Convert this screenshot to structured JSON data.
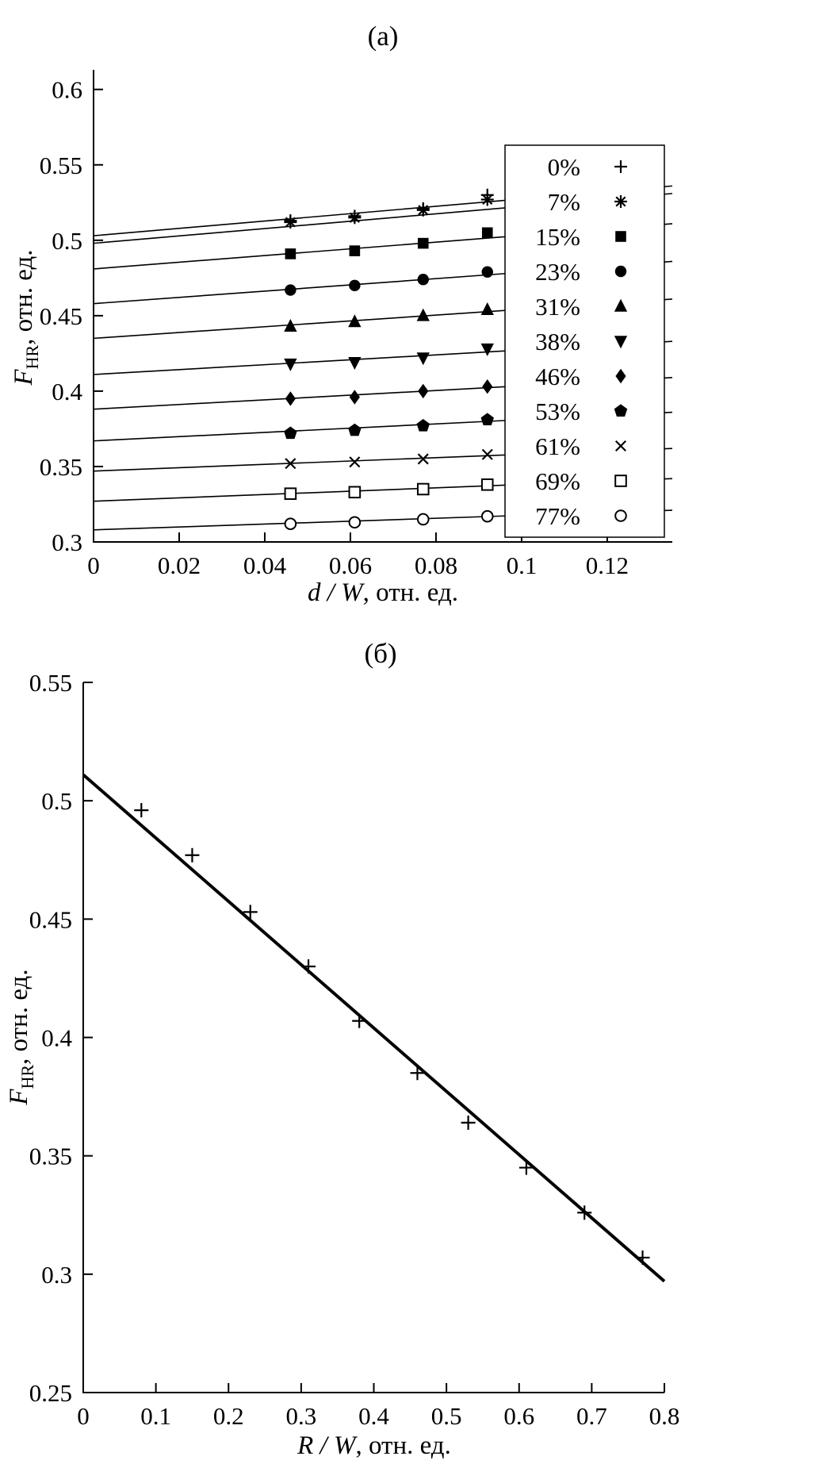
{
  "page": {
    "background": "#ffffff",
    "ink": "#000000"
  },
  "chart_data": [
    {
      "id": "a",
      "type": "scatter",
      "title": "(а)",
      "xlabel": {
        "italic": "d / W",
        "rest": ", отн. ед."
      },
      "ylabel": {
        "italic": "F",
        "sub": "HR",
        "rest": ", отн. ед."
      },
      "xlim": [
        0,
        0.1352
      ],
      "ylim": [
        0.3,
        0.613
      ],
      "grid": false,
      "legend": {
        "position": "right-inside"
      },
      "xticks": {
        "values": [
          0,
          0.02,
          0.04,
          0.06,
          0.08,
          0.1,
          0.12
        ],
        "labels": [
          "0",
          "0.02",
          "0.04",
          "0.06",
          "0.08",
          "0.1",
          "0.12"
        ]
      },
      "yticks": {
        "values": [
          0.3,
          0.35,
          0.4,
          0.45,
          0.5,
          0.55,
          0.6
        ],
        "labels": [
          "0.3",
          "0.35",
          "0.4",
          "0.45",
          "0.5",
          "0.55",
          "0.6"
        ]
      },
      "x": [
        0.046,
        0.061,
        0.077,
        0.092
      ],
      "series": [
        {
          "label": "0%",
          "marker": "plus",
          "values": [
            0.513,
            0.516,
            0.521,
            0.53
          ],
          "fit": [
            0.503,
            0.536
          ]
        },
        {
          "label": "7%",
          "marker": "asterisk",
          "values": [
            0.512,
            0.515,
            0.52,
            0.527
          ],
          "fit": [
            0.498,
            0.531
          ]
        },
        {
          "label": "15%",
          "marker": "square-filled",
          "values": [
            0.491,
            0.493,
            0.498,
            0.505
          ],
          "fit": [
            0.481,
            0.511
          ]
        },
        {
          "label": "23%",
          "marker": "circle-filled",
          "values": [
            0.467,
            0.47,
            0.474,
            0.479
          ],
          "fit": [
            0.458,
            0.486
          ]
        },
        {
          "label": "31%",
          "marker": "triangle-up-filled",
          "values": [
            0.443,
            0.446,
            0.45,
            0.454
          ],
          "fit": [
            0.435,
            0.461
          ]
        },
        {
          "label": "38%",
          "marker": "triangle-down-filled",
          "values": [
            0.418,
            0.419,
            0.422,
            0.428
          ],
          "fit": [
            0.411,
            0.433
          ]
        },
        {
          "label": "46%",
          "marker": "diamond-filled",
          "values": [
            0.395,
            0.396,
            0.4,
            0.403
          ],
          "fit": [
            0.388,
            0.409
          ]
        },
        {
          "label": "53%",
          "marker": "pentagon-filled",
          "values": [
            0.372,
            0.374,
            0.377,
            0.381
          ],
          "fit": [
            0.367,
            0.386
          ]
        },
        {
          "label": "61%",
          "marker": "x",
          "values": [
            0.352,
            0.353,
            0.355,
            0.358
          ],
          "fit": [
            0.347,
            0.362
          ]
        },
        {
          "label": "69%",
          "marker": "square-open",
          "values": [
            0.332,
            0.333,
            0.335,
            0.338
          ],
          "fit": [
            0.327,
            0.342
          ]
        },
        {
          "label": "77%",
          "marker": "circle-open",
          "values": [
            0.312,
            0.313,
            0.315,
            0.317
          ],
          "fit": [
            0.308,
            0.321
          ]
        }
      ]
    },
    {
      "id": "b",
      "type": "scatter",
      "title": "(б)",
      "xlabel": {
        "italic": "R / W",
        "rest": ", отн. ед."
      },
      "ylabel": {
        "italic": "F",
        "sub": "HR",
        "rest": ", отн. ед."
      },
      "xlim": [
        0,
        0.8
      ],
      "ylim": [
        0.25,
        0.55
      ],
      "grid": false,
      "xticks": {
        "values": [
          0,
          0.1,
          0.2,
          0.3,
          0.4,
          0.5,
          0.6,
          0.7,
          0.8
        ],
        "labels": [
          "0",
          "0.1",
          "0.2",
          "0.3",
          "0.4",
          "0.5",
          "0.6",
          "0.7",
          "0.8"
        ]
      },
      "yticks": {
        "values": [
          0.25,
          0.3,
          0.35,
          0.4,
          0.45,
          0.5,
          0.55
        ],
        "labels": [
          "0.25",
          "0.3",
          "0.35",
          "0.4",
          "0.45",
          "0.5",
          "0.55"
        ]
      },
      "series": [
        {
          "label": "",
          "marker": "plus",
          "x": [
            0.08,
            0.15,
            0.23,
            0.31,
            0.38,
            0.46,
            0.53,
            0.61,
            0.69,
            0.77
          ],
          "values": [
            0.496,
            0.477,
            0.453,
            0.43,
            0.407,
            0.385,
            0.364,
            0.345,
            0.326,
            0.307
          ],
          "fit": [
            0.511,
            0.297
          ]
        }
      ]
    }
  ]
}
